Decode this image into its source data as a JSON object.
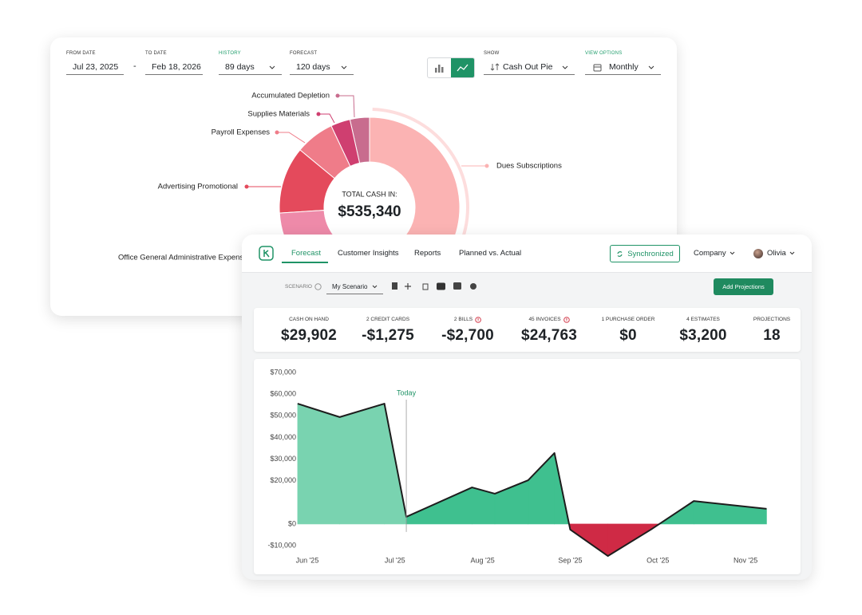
{
  "back_panel": {
    "filters": [
      {
        "label": "FROM DATE",
        "value": "Jul 23, 2025"
      },
      {
        "label": "TO DATE",
        "value": "Feb 18, 2026"
      },
      {
        "label": "HISTORY",
        "value": "89 days"
      },
      {
        "label": "FORECAST",
        "value": "120 days"
      },
      {
        "label": "SHOW",
        "value": "Cash Out Pie"
      },
      {
        "label": "VIEW OPTIONS",
        "value": "Monthly"
      }
    ],
    "date_separator": "-",
    "donut": {
      "type": "pie",
      "center_label": "TOTAL CASH IN:",
      "center_value": "$535,340",
      "categories": [
        "Dues Subscriptions",
        "Office General Administrative Expenses",
        "Advertising Promotional",
        "Payroll Expenses",
        "Supplies Materials",
        "Accumulated Depletion"
      ],
      "values": [
        57,
        17,
        12,
        7,
        3.5,
        3.5
      ],
      "colors": [
        "#fbb3b3",
        "#ee8aa9",
        "#e44a5c",
        "#ef7c89",
        "#cf3f70",
        "#c86c8e"
      ]
    }
  },
  "front_panel": {
    "nav": {
      "tabs": [
        "Forecast",
        "Customer Insights",
        "Reports",
        "Planned vs. Actual"
      ],
      "sync": "Synchronized",
      "company": "Company",
      "user": "Olivia"
    },
    "scenario": {
      "label": "SCENARIO",
      "value": "My Scenario",
      "button": "Add Projections"
    },
    "stats": [
      {
        "label": "CASH ON HAND",
        "value": "$29,902"
      },
      {
        "label": "2 CREDIT CARDS",
        "value": "-$1,275"
      },
      {
        "label": "2 BILLS",
        "value": "-$2,700"
      },
      {
        "label": "45 INVOICES",
        "value": "$24,763"
      },
      {
        "label": "1 PURCHASE ORDER",
        "value": "$0"
      },
      {
        "label": "4 ESTIMATES",
        "value": "$3,200"
      },
      {
        "label": "PROJECTIONS",
        "value": "18"
      }
    ],
    "chart": {
      "type": "area",
      "x": [
        -0.11,
        0.37,
        0.88,
        1.13,
        1.88,
        2.14,
        2.52,
        2.82,
        3.0,
        3.43,
        3.92,
        4.41,
        5.24
      ],
      "series": [
        {
          "color": "#1d1d1d",
          "values": [
            55600,
            49400,
            55600,
            3300,
            16900,
            14000,
            20200,
            32800,
            -2600,
            -14800,
            -2600,
            10600,
            7000
          ]
        }
      ],
      "fill_colors": {
        "past": "#79d3b0",
        "future": "#3fc08f",
        "negative": "#cf2a45"
      },
      "xlim": [
        -0.2,
        5.5
      ],
      "xticks": [
        {
          "value": 0,
          "label": "Jun '25"
        },
        {
          "value": 1,
          "label": "Jul '25"
        },
        {
          "value": 2,
          "label": "Aug '25"
        },
        {
          "value": 3,
          "label": "Sep '25"
        },
        {
          "value": 4,
          "label": "Oct '25"
        },
        {
          "value": 5,
          "label": "Nov '25"
        }
      ],
      "ylim": [
        -16000,
        70000
      ],
      "yticks": [
        {
          "value": 70000,
          "label": "$70,000"
        },
        {
          "value": 60000,
          "label": "$60,000"
        },
        {
          "value": 50000,
          "label": "$50,000"
        },
        {
          "value": 40000,
          "label": "$40,000"
        },
        {
          "value": 30000,
          "label": "$30,000"
        },
        {
          "value": 20000,
          "label": "$20,000"
        },
        {
          "value": 0,
          "label": "$0"
        },
        {
          "value": -10000,
          "label": "-$10,000"
        }
      ],
      "today": {
        "x": 1.13,
        "label": "Today"
      }
    }
  }
}
